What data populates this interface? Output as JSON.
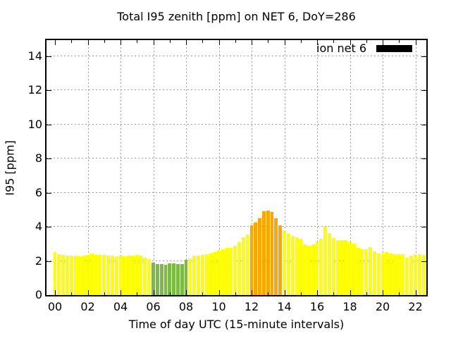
{
  "title": "Total I95 zenith [ppm] on NET 6, DoY=286",
  "legend": {
    "label": "ion net 6",
    "swatch_color": "#000000"
  },
  "axes": {
    "xlabel": "Time of day UTC (15-minute intervals)",
    "ylabel": "I95 [ppm]",
    "x_tick_labels": [
      "00",
      "02",
      "04",
      "06",
      "08",
      "10",
      "12",
      "14",
      "16",
      "18",
      "20",
      "22"
    ],
    "x_tick_hours": [
      0,
      2,
      4,
      6,
      8,
      10,
      12,
      14,
      16,
      18,
      20,
      22
    ],
    "x_minor_tick_hours": [
      1,
      3,
      5,
      7,
      9,
      11,
      13,
      15,
      17,
      19,
      21
    ],
    "y_tick_labels": [
      "0",
      "2",
      "4",
      "6",
      "8",
      "10",
      "12",
      "14"
    ],
    "y_ticks": [
      0,
      2,
      4,
      6,
      8,
      10,
      12,
      14
    ],
    "y_gridlines": [
      2,
      4,
      6,
      8,
      10,
      12,
      14
    ],
    "x_gridline_hours": [
      2,
      4,
      6,
      8,
      10,
      12,
      14,
      16,
      18,
      20,
      22
    ],
    "ylim": [
      0,
      14.95
    ],
    "xlim_hours": [
      -0.5,
      22.95
    ],
    "grid": true
  },
  "chart_data": {
    "type": "bar",
    "title": "Total I95 zenith [ppm] on NET 6, DoY=286",
    "xlabel": "Time of day UTC (15-minute intervals)",
    "ylabel": "I95 [ppm]",
    "unit": "ppm",
    "interval_minutes": 15,
    "legend_position": "top-right-inside",
    "series_name": "ion net 6",
    "palette": {
      "Y": "#ffff00",
      "G": "#7abb44",
      "O": "#ffa500"
    },
    "times": [
      "00:00",
      "00:15",
      "00:30",
      "00:45",
      "01:00",
      "01:15",
      "01:30",
      "01:45",
      "02:00",
      "02:15",
      "02:30",
      "02:45",
      "03:00",
      "03:15",
      "03:30",
      "03:45",
      "04:00",
      "04:15",
      "04:30",
      "04:45",
      "05:00",
      "05:15",
      "05:30",
      "05:45",
      "06:00",
      "06:15",
      "06:30",
      "06:45",
      "07:00",
      "07:15",
      "07:30",
      "07:45",
      "08:00",
      "08:15",
      "08:30",
      "08:45",
      "09:00",
      "09:15",
      "09:30",
      "09:45",
      "10:00",
      "10:15",
      "10:30",
      "10:45",
      "11:00",
      "11:15",
      "11:30",
      "11:45",
      "12:00",
      "12:15",
      "12:30",
      "12:45",
      "13:00",
      "13:15",
      "13:30",
      "13:45",
      "14:00",
      "14:15",
      "14:30",
      "14:45",
      "15:00",
      "15:15",
      "15:30",
      "15:45",
      "16:00",
      "16:15",
      "16:30",
      "16:45",
      "17:00",
      "17:15",
      "17:30",
      "17:45",
      "18:00",
      "18:15",
      "18:30",
      "18:45",
      "19:00",
      "19:15",
      "19:30",
      "19:45",
      "20:00",
      "20:15",
      "20:30",
      "20:45",
      "21:00",
      "21:15",
      "21:30",
      "21:45",
      "22:00",
      "22:15",
      "22:30",
      "22:45"
    ],
    "values": [
      2.5,
      2.4,
      2.35,
      2.3,
      2.3,
      2.3,
      2.25,
      2.3,
      2.35,
      2.45,
      2.35,
      2.35,
      2.35,
      2.3,
      2.3,
      2.25,
      2.3,
      2.25,
      2.3,
      2.3,
      2.35,
      2.3,
      2.2,
      2.1,
      1.9,
      1.8,
      1.8,
      1.78,
      1.85,
      1.87,
      1.8,
      1.8,
      2.05,
      2.15,
      2.3,
      2.3,
      2.35,
      2.4,
      2.45,
      2.5,
      2.65,
      2.7,
      2.75,
      2.75,
      2.9,
      3.1,
      3.4,
      3.55,
      4.1,
      4.25,
      4.5,
      4.9,
      4.95,
      4.85,
      4.5,
      4.1,
      3.8,
      3.6,
      3.45,
      3.4,
      3.3,
      2.95,
      2.9,
      2.95,
      3.1,
      3.3,
      4.0,
      3.65,
      3.35,
      3.2,
      3.2,
      3.2,
      3.1,
      3.0,
      2.75,
      2.7,
      2.7,
      2.8,
      2.55,
      2.45,
      2.45,
      2.5,
      2.45,
      2.4,
      2.4,
      2.4,
      2.2,
      2.3,
      2.4,
      2.4,
      2.35,
      2.5
    ],
    "colors": [
      "Y",
      "Y",
      "Y",
      "Y",
      "Y",
      "Y",
      "Y",
      "Y",
      "Y",
      "Y",
      "Y",
      "Y",
      "Y",
      "Y",
      "Y",
      "Y",
      "Y",
      "Y",
      "Y",
      "Y",
      "Y",
      "Y",
      "Y",
      "Y",
      "G",
      "G",
      "G",
      "G",
      "G",
      "G",
      "G",
      "G",
      "G",
      "Y",
      "Y",
      "Y",
      "Y",
      "Y",
      "Y",
      "Y",
      "Y",
      "Y",
      "Y",
      "Y",
      "Y",
      "Y",
      "Y",
      "Y",
      "O",
      "O",
      "O",
      "O",
      "O",
      "O",
      "O",
      "O",
      "Y",
      "Y",
      "Y",
      "Y",
      "Y",
      "Y",
      "Y",
      "Y",
      "Y",
      "Y",
      "Y",
      "Y",
      "Y",
      "Y",
      "Y",
      "Y",
      "Y",
      "Y",
      "Y",
      "Y",
      "Y",
      "Y",
      "Y",
      "Y",
      "Y",
      "Y",
      "Y",
      "Y",
      "Y",
      "Y",
      "Y",
      "Y",
      "Y",
      "Y",
      "Y",
      "Y"
    ]
  }
}
